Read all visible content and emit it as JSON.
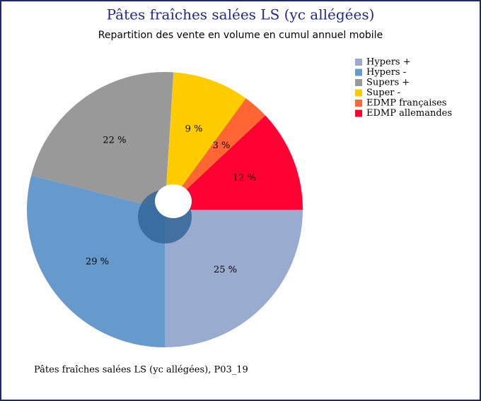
{
  "chart_data": {
    "type": "pie",
    "title": "Pâtes fraîches salées LS (yc allégées)",
    "subtitle": "Repartition des vente en volume en cumul annuel mobile",
    "note": "Pâtes fraîches salées LS (yc allégées), P03_19",
    "categories": [
      "Hypers +",
      "Hypers -",
      "Supers +",
      "Super -",
      "EDMP françaises",
      "EDMP allemandes"
    ],
    "values": [
      25,
      29,
      22,
      9,
      3,
      12
    ],
    "value_labels": [
      "25 %",
      "29 %",
      "22 %",
      "9 %",
      "3 %",
      "12 %"
    ],
    "colors": [
      "#9aabd0",
      "#6699cc",
      "#999999",
      "#ffcc00",
      "#ff6633",
      "#ff0033"
    ],
    "legend": "upper right"
  }
}
